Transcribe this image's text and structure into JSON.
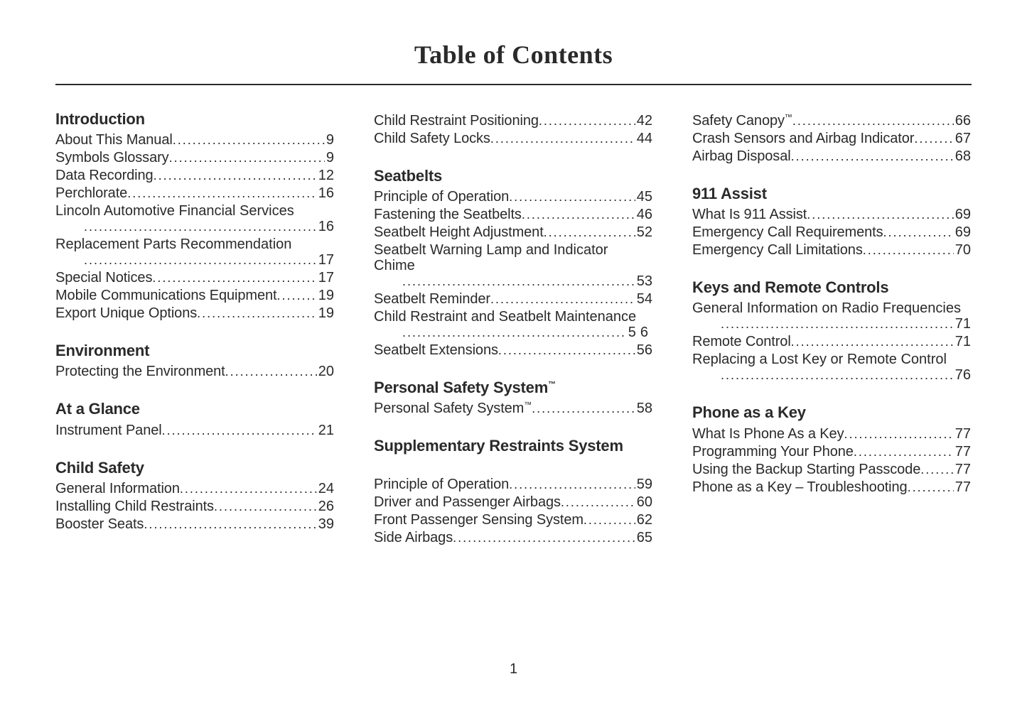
{
  "title": "Table of Contents",
  "page_number": "1",
  "columns": [
    {
      "blocks": [
        {
          "heading": "Introduction",
          "entries": [
            {
              "label": "About This Manual",
              "page": "9"
            },
            {
              "label": "Symbols Glossary",
              "page": "9"
            },
            {
              "label": "Data Recording",
              "page": "12"
            },
            {
              "label": "Perchlorate",
              "page": "16"
            },
            {
              "label": "Lincoln Automotive Financial Services",
              "page": "16",
              "wrap": true
            },
            {
              "label": "Replacement Parts Recommendation",
              "page": "17",
              "wrap": true
            },
            {
              "label": "Special Notices",
              "page": "17"
            },
            {
              "label": "Mobile Communications Equipment",
              "page": "19"
            },
            {
              "label": "Export Unique Options",
              "page": "19"
            }
          ]
        },
        {
          "heading": "Environment",
          "entries": [
            {
              "label": "Protecting the Environment",
              "page": "20"
            }
          ]
        },
        {
          "heading": "At a Glance",
          "entries": [
            {
              "label": "Instrument Panel",
              "page": "21"
            }
          ]
        },
        {
          "heading": "Child Safety",
          "entries": [
            {
              "label": "General Information",
              "page": "24"
            },
            {
              "label": "Installing Child Restraints",
              "page": "26"
            },
            {
              "label": "Booster Seats",
              "page": "39"
            }
          ]
        }
      ]
    },
    {
      "blocks": [
        {
          "heading": null,
          "entries": [
            {
              "label": "Child Restraint Positioning",
              "page": "42"
            },
            {
              "label": "Child Safety Locks",
              "page": "44"
            }
          ]
        },
        {
          "heading": "Seatbelts",
          "entries": [
            {
              "label": "Principle of Operation",
              "page": "45"
            },
            {
              "label": "Fastening the Seatbelts",
              "page": "46"
            },
            {
              "label": "Seatbelt Height Adjustment",
              "page": "52"
            },
            {
              "label": "Seatbelt Warning Lamp and Indicator Chime",
              "page": "53",
              "wrap": true,
              "cont": "Chime"
            },
            {
              "label": "Seatbelt Reminder",
              "page": "54"
            },
            {
              "label": "Child Restraint and Seatbelt Maintenance",
              "page": "56",
              "wrap": true,
              "spaced": true
            },
            {
              "label": "Seatbelt Extensions",
              "page": "56"
            }
          ]
        },
        {
          "heading": "Personal Safety System",
          "tm": true,
          "entries": [
            {
              "label": "Personal Safety System",
              "tm": true,
              "page": "58"
            }
          ]
        },
        {
          "heading": "Supplementary Restraints System",
          "gap": true,
          "entries": [
            {
              "label": "Principle of Operation",
              "page": "59"
            },
            {
              "label": "Driver and Passenger Airbags",
              "page": "60"
            },
            {
              "label": "Front Passenger Sensing System",
              "page": "62"
            },
            {
              "label": "Side Airbags",
              "page": "65"
            }
          ]
        }
      ]
    },
    {
      "blocks": [
        {
          "heading": null,
          "entries": [
            {
              "label": "Safety Canopy",
              "tm": true,
              "page": "66"
            },
            {
              "label": "Crash Sensors and Airbag Indicator",
              "page": "67"
            },
            {
              "label": "Airbag Disposal",
              "page": "68"
            }
          ]
        },
        {
          "heading": "911 Assist",
          "entries": [
            {
              "label": "What Is 911 Assist",
              "page": "69"
            },
            {
              "label": "Emergency Call Requirements",
              "page": "69"
            },
            {
              "label": "Emergency Call Limitations",
              "page": "70"
            }
          ]
        },
        {
          "heading": "Keys and Remote Controls",
          "entries": [
            {
              "label": "General Information on Radio Frequencies",
              "page": "71",
              "wrap": true
            },
            {
              "label": "Remote Control",
              "page": "71"
            },
            {
              "label": "Replacing a Lost Key or Remote Control",
              "page": "76",
              "wrap": true
            }
          ]
        },
        {
          "heading": "Phone as a Key",
          "entries": [
            {
              "label": "What Is Phone As a Key",
              "page": "77"
            },
            {
              "label": "Programming Your Phone",
              "page": "77"
            },
            {
              "label": "Using the Backup Starting Passcode",
              "page": "77"
            },
            {
              "label": "Phone as a Key – Troubleshooting",
              "page": "77"
            }
          ]
        }
      ]
    }
  ]
}
